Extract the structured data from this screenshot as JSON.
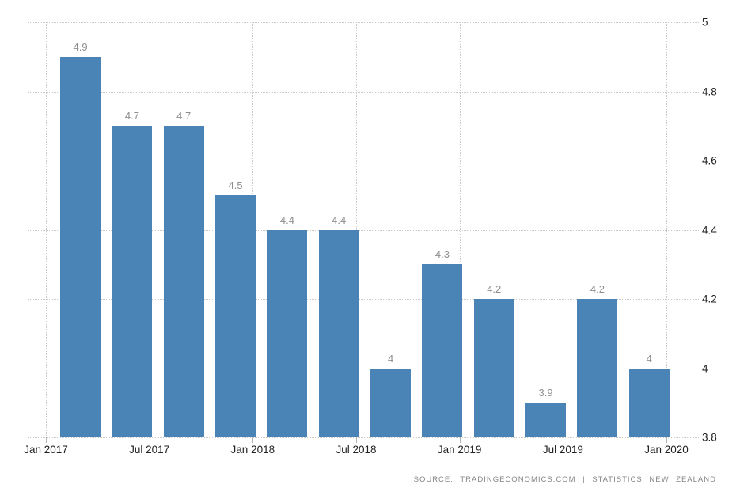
{
  "chart_data": {
    "type": "bar",
    "title": "",
    "xlabel": "",
    "ylabel": "",
    "categories": [
      "2017-Q1",
      "2017-Q2",
      "2017-Q3",
      "2017-Q4",
      "2018-Q1",
      "2018-Q2",
      "2018-Q3",
      "2018-Q4",
      "2019-Q1",
      "2019-Q2",
      "2019-Q3",
      "2019-Q4"
    ],
    "values": [
      4.9,
      4.7,
      4.7,
      4.5,
      4.4,
      4.4,
      4,
      4.3,
      4.2,
      3.9,
      4.2,
      4
    ],
    "bar_value_labels": [
      "4.9",
      "4.7",
      "4.7",
      "4.5",
      "4.4",
      "4.4",
      "4",
      "4.3",
      "4.2",
      "3.9",
      "4.2",
      "4"
    ],
    "x_tick_labels": [
      "Jan 2017",
      "Jul 2017",
      "Jan 2018",
      "Jul 2018",
      "Jan 2019",
      "Jul 2019",
      "Jan 2020"
    ],
    "y_tick_labels": [
      "5",
      "4.8",
      "4.6",
      "4.4",
      "4.2",
      "4",
      "3.8"
    ],
    "y_tick_values": [
      5,
      4.8,
      4.6,
      4.4,
      4.2,
      4,
      3.8
    ],
    "ylim": [
      3.8,
      5
    ],
    "grid": "dotted",
    "legend": "none",
    "y_axis_side": "right",
    "colors": {
      "bar": "#4a83b5",
      "grid": "#c9c9c9",
      "bar_label": "#8e8e8e",
      "axis_label": "#222222",
      "tick_mark": "#b3b3b3",
      "source_text": "#858585",
      "background": "#ffffff"
    }
  },
  "source": {
    "text": "SOURCE: TRADINGECONOMICS.COM | STATISTICS NEW ZEALAND"
  }
}
